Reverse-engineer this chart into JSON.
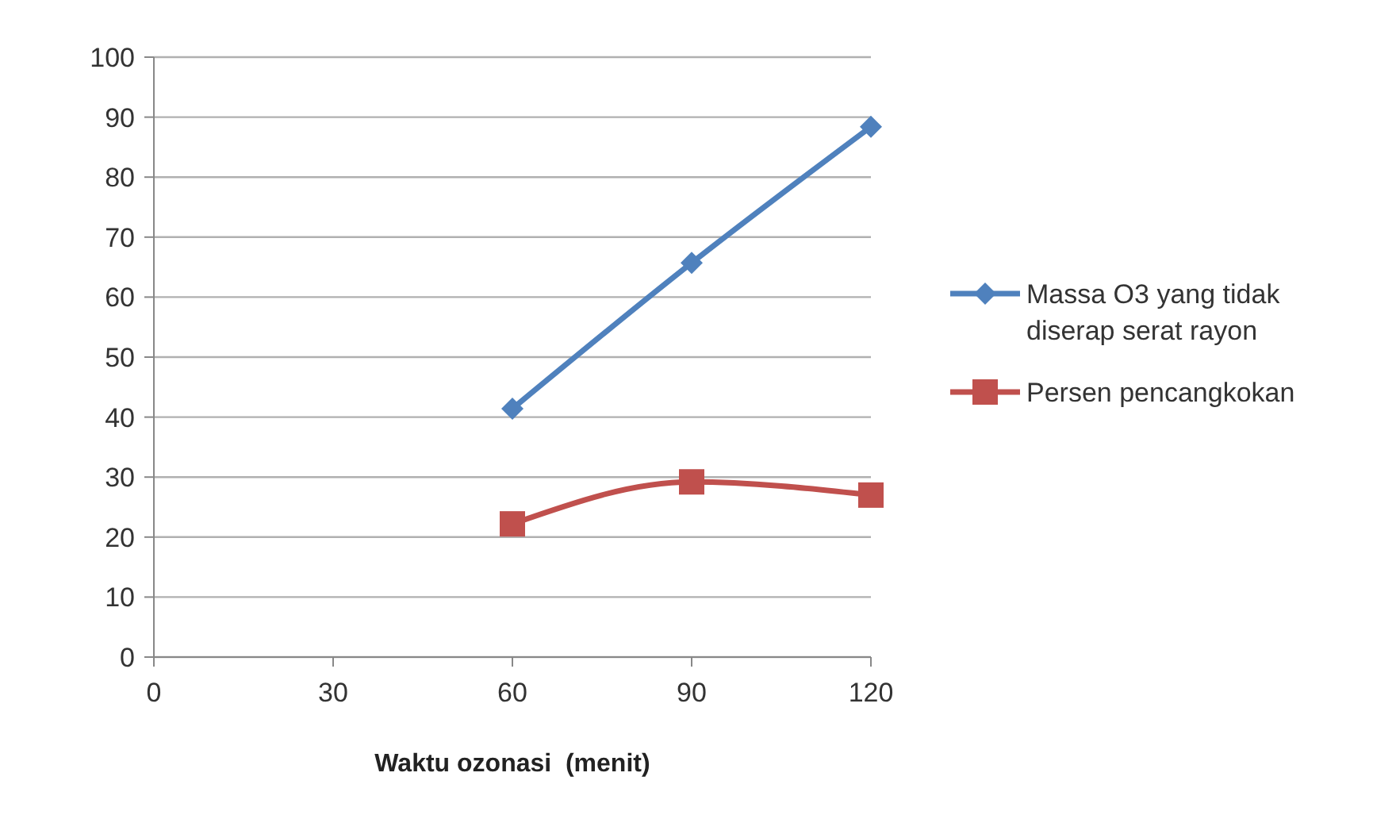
{
  "chart_data": {
    "type": "line",
    "xlabel": "Waktu ozonasi  (menit)",
    "x": [
      60,
      90,
      120
    ],
    "series": [
      {
        "name": "Massa O3 yang tidak diserap serat rayon",
        "color": "#4f81bd",
        "marker": "diamond",
        "values": [
          41.4,
          65.7,
          88.4
        ]
      },
      {
        "name": "Persen pencangkokan",
        "color": "#c0504d",
        "marker": "square",
        "values": [
          22.2,
          29.2,
          27
        ]
      }
    ],
    "xlim": [
      0,
      120
    ],
    "xticks": [
      0,
      30,
      60,
      90,
      120
    ],
    "ylim": [
      0,
      100
    ],
    "yticks": [
      0,
      10,
      20,
      30,
      40,
      50,
      60,
      70,
      80,
      90,
      100
    ],
    "grid": "y",
    "legend": "right",
    "line_style": "solid"
  }
}
